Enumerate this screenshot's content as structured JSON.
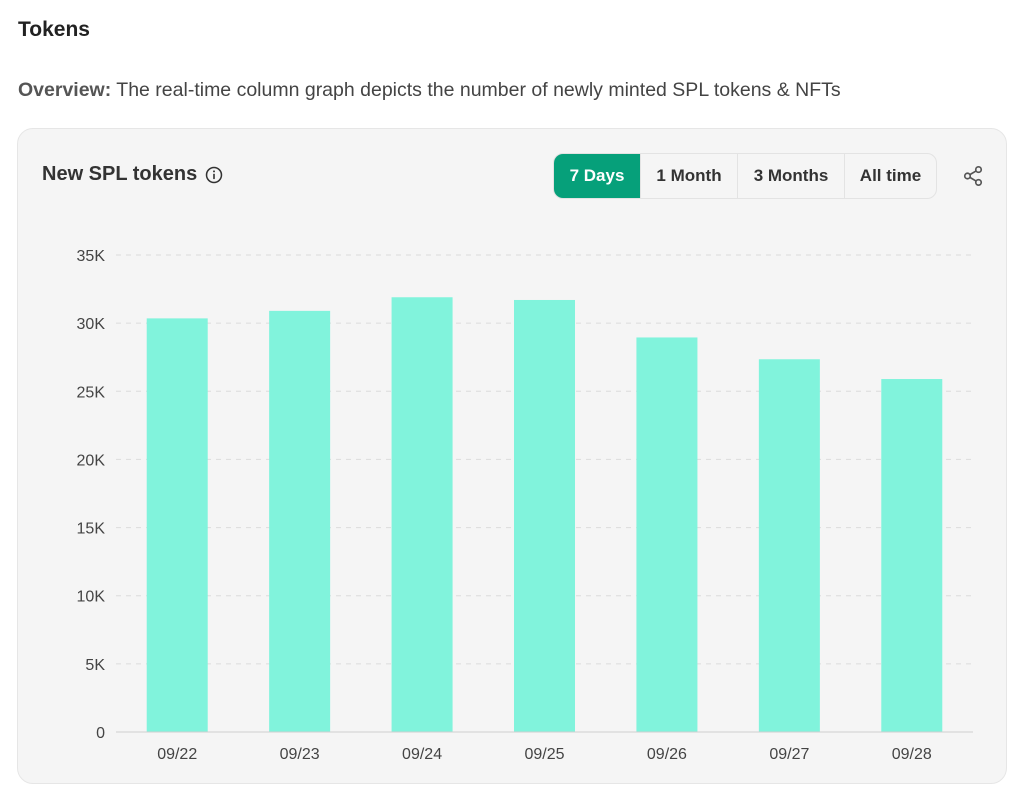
{
  "page": {
    "title": "Tokens",
    "overview_label": "Overview:",
    "overview_text": " The real-time column graph depicts the number of newly minted SPL tokens & NFTs"
  },
  "card": {
    "title": "New SPL tokens",
    "info_icon": "info-circle-icon",
    "share_icon": "share-icon",
    "ranges": [
      {
        "label": "7 Days",
        "active": true
      },
      {
        "label": "1 Month",
        "active": false
      },
      {
        "label": "3 Months",
        "active": false
      },
      {
        "label": "All time",
        "active": false
      }
    ],
    "accent_color": "#06a07a"
  },
  "chart_data": {
    "type": "bar",
    "categories": [
      "09/22",
      "09/23",
      "09/24",
      "09/25",
      "09/26",
      "09/27",
      "09/28"
    ],
    "values": [
      30350,
      30900,
      31900,
      31700,
      28950,
      27350,
      25900
    ],
    "ylim": [
      0,
      35000
    ],
    "yticks": [
      0,
      5000,
      10000,
      15000,
      20000,
      25000,
      30000,
      35000
    ],
    "ytick_labels": [
      "0",
      "5K",
      "10K",
      "15K",
      "20K",
      "25K",
      "30K",
      "35K"
    ],
    "grid": true,
    "bar_color": "#81f3dc"
  }
}
